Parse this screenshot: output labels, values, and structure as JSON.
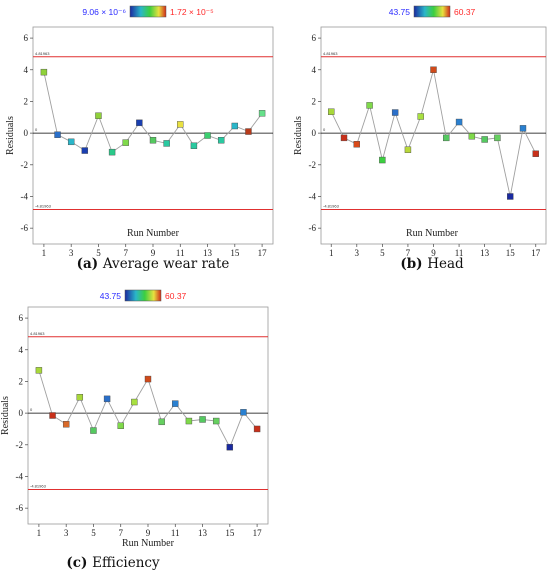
{
  "colors": {
    "limit_line": "#e03030",
    "connector": "#a0a0a0",
    "zero_line": "#000000",
    "legend_low_text": "#2a2aff",
    "legend_high_text": "#ff2a2a"
  },
  "chart_data": [
    {
      "type": "line",
      "caption_letter": "(a)",
      "caption_text": "Average wear rate",
      "xlabel": "Run Number",
      "ylabel": "Residuals",
      "ylim": [
        -7,
        6.7
      ],
      "xlim": [
        0.2,
        17.8
      ],
      "yticks": [
        -6,
        -4,
        -2,
        0,
        2,
        4,
        6
      ],
      "xticks": [
        1,
        3,
        5,
        7,
        9,
        11,
        13,
        15,
        17
      ],
      "upper_limit": 4.81963,
      "lower_limit": -4.81963,
      "upper_limit_label": "4.81963",
      "lower_limit_label": "-4.81963",
      "zero_label": "0",
      "legend": {
        "low": "9.06 × 10⁻⁶",
        "high": "1.72 × 10⁻⁵"
      },
      "x": [
        1,
        2,
        3,
        4,
        5,
        6,
        7,
        8,
        9,
        10,
        11,
        12,
        13,
        14,
        15,
        16,
        17
      ],
      "values": [
        3.85,
        -0.1,
        -0.55,
        -1.1,
        1.1,
        -1.2,
        -0.6,
        0.65,
        -0.45,
        -0.65,
        0.55,
        -0.8,
        -0.15,
        -0.45,
        0.45,
        0.1,
        1.25
      ],
      "point_colors": [
        "#8fd13a",
        "#2a6fc9",
        "#2ab6c9",
        "#1a3fb0",
        "#8fd13a",
        "#2ac98a",
        "#7fd94a",
        "#1a3fb0",
        "#55c960",
        "#2ac9a0",
        "#e8e040",
        "#2ac9a0",
        "#3ccf70",
        "#2ac9a0",
        "#2ab6c9",
        "#b83a1a",
        "#66e08a"
      ]
    },
    {
      "type": "line",
      "caption_letter": "(b)",
      "caption_text": "Head",
      "xlabel": "Run Number",
      "ylabel": "Residuals",
      "ylim": [
        -7,
        6.7
      ],
      "xlim": [
        0.2,
        17.8
      ],
      "yticks": [
        -6,
        -4,
        -2,
        0,
        2,
        4,
        6
      ],
      "xticks": [
        1,
        3,
        5,
        7,
        9,
        11,
        13,
        15,
        17
      ],
      "upper_limit": 4.81963,
      "lower_limit": -4.81963,
      "upper_limit_label": "4.81963",
      "lower_limit_label": "-4.81963",
      "zero_label": "0",
      "legend": {
        "low": "43.75",
        "high": "60.37"
      },
      "x": [
        1,
        2,
        3,
        4,
        5,
        6,
        7,
        8,
        9,
        10,
        11,
        12,
        13,
        14,
        15,
        16,
        17
      ],
      "values": [
        1.35,
        -0.3,
        -0.7,
        1.75,
        -1.7,
        1.3,
        -1.05,
        1.05,
        4.0,
        -0.3,
        0.7,
        -0.2,
        -0.4,
        -0.3,
        -4.0,
        0.3,
        -1.3
      ],
      "point_colors": [
        "#a8d83a",
        "#c8301a",
        "#d84a1a",
        "#7fd94a",
        "#3ccf40",
        "#2a6fc9",
        "#b8d83a",
        "#a8e040",
        "#d04a1a",
        "#55c960",
        "#2a80d0",
        "#7fd94a",
        "#55c960",
        "#66d060",
        "#1a2aa0",
        "#2a80d0",
        "#c8301a"
      ]
    },
    {
      "type": "line",
      "caption_letter": "(c)",
      "caption_text": "Efficiency",
      "xlabel": "Run Number",
      "ylabel": "Residuals",
      "ylim": [
        -7,
        6.7
      ],
      "xlim": [
        0.2,
        17.8
      ],
      "yticks": [
        -6,
        -4,
        -2,
        0,
        2,
        4,
        6
      ],
      "xticks": [
        1,
        3,
        5,
        7,
        9,
        11,
        13,
        15,
        17
      ],
      "upper_limit": 4.81963,
      "lower_limit": -4.81963,
      "upper_limit_label": "4.81963",
      "lower_limit_label": "-4.81963",
      "zero_label": "0",
      "legend": {
        "low": "43.75",
        "high": "60.37"
      },
      "x": [
        1,
        2,
        3,
        4,
        5,
        6,
        7,
        8,
        9,
        10,
        11,
        12,
        13,
        14,
        15,
        16,
        17
      ],
      "values": [
        2.7,
        -0.15,
        -0.7,
        1.0,
        -1.1,
        0.9,
        -0.8,
        0.7,
        2.15,
        -0.55,
        0.6,
        -0.5,
        -0.4,
        -0.5,
        -2.15,
        0.05,
        -1.0
      ],
      "point_colors": [
        "#a8d83a",
        "#c8301a",
        "#d86a2a",
        "#a8d83a",
        "#55c960",
        "#2a6fc9",
        "#7fd94a",
        "#a8e040",
        "#d04a1a",
        "#66d060",
        "#2a80d0",
        "#7fd94a",
        "#55c960",
        "#66d060",
        "#1a2aa0",
        "#2a80d0",
        "#c8301a"
      ]
    }
  ]
}
